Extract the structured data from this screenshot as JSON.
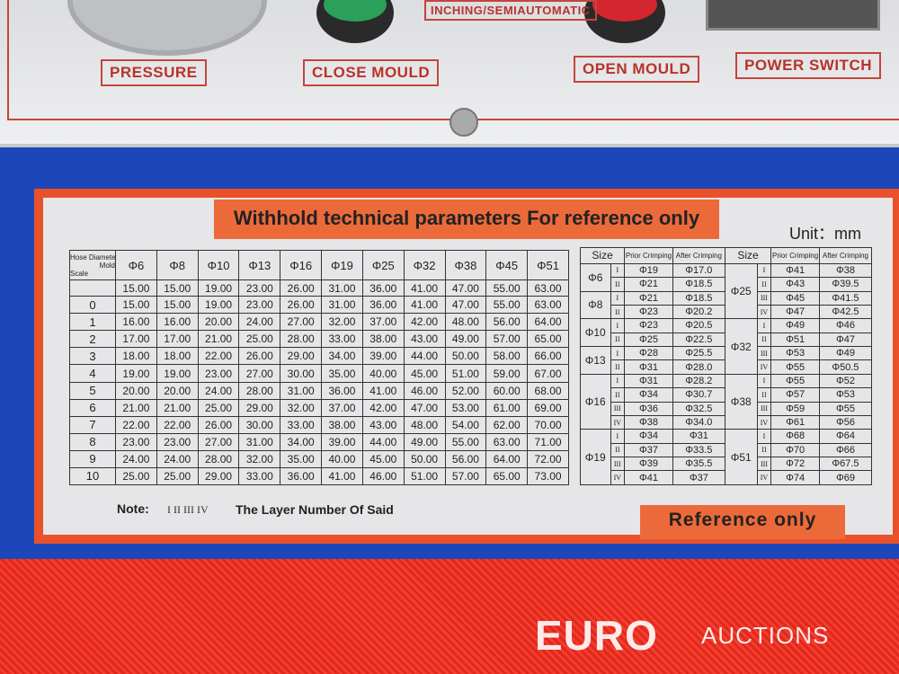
{
  "panel": {
    "pressure": "PRESSURE",
    "close_mould": "CLOSE MOULD",
    "mode": "INCHING/SEMIAUTOMATIC",
    "open_mould": "OPEN MOULD",
    "power_switch": "POWER SWITCH"
  },
  "label": {
    "title": "Withhold technical parameters For reference only",
    "unit": "Unit：mm",
    "note": "Note:",
    "layers": "I II III IV",
    "note_text": "The Layer Number Of Said",
    "reference": "Reference only"
  },
  "left_table": {
    "corner": {
      "hose_diameter": "Hose Diameter",
      "mold": "Mold",
      "scale": "Scale"
    },
    "columns": [
      "Φ6",
      "Φ8",
      "Φ10",
      "Φ13",
      "Φ16",
      "Φ19",
      "Φ25",
      "Φ32",
      "Φ38",
      "Φ45",
      "Φ51"
    ],
    "rows": [
      {
        "values": [
          "15.00",
          "15.00",
          "19.00",
          "23.00",
          "26.00",
          "31.00",
          "36.00",
          "41.00",
          "47.00",
          "55.00",
          "63.00"
        ]
      },
      {
        "scale": "0",
        "values": [
          "15.00",
          "15.00",
          "19.00",
          "23.00",
          "26.00",
          "31.00",
          "36.00",
          "41.00",
          "47.00",
          "55.00",
          "63.00"
        ]
      },
      {
        "scale": "1",
        "values": [
          "16.00",
          "16.00",
          "20.00",
          "24.00",
          "27.00",
          "32.00",
          "37.00",
          "42.00",
          "48.00",
          "56.00",
          "64.00"
        ]
      },
      {
        "scale": "2",
        "values": [
          "17.00",
          "17.00",
          "21.00",
          "25.00",
          "28.00",
          "33.00",
          "38.00",
          "43.00",
          "49.00",
          "57.00",
          "65.00"
        ]
      },
      {
        "scale": "3",
        "values": [
          "18.00",
          "18.00",
          "22.00",
          "26.00",
          "29.00",
          "34.00",
          "39.00",
          "44.00",
          "50.00",
          "58.00",
          "66.00"
        ]
      },
      {
        "scale": "4",
        "values": [
          "19.00",
          "19.00",
          "23.00",
          "27.00",
          "30.00",
          "35.00",
          "40.00",
          "45.00",
          "51.00",
          "59.00",
          "67.00"
        ]
      },
      {
        "scale": "5",
        "values": [
          "20.00",
          "20.00",
          "24.00",
          "28.00",
          "31.00",
          "36.00",
          "41.00",
          "46.00",
          "52.00",
          "60.00",
          "68.00"
        ]
      },
      {
        "scale": "6",
        "values": [
          "21.00",
          "21.00",
          "25.00",
          "29.00",
          "32.00",
          "37.00",
          "42.00",
          "47.00",
          "53.00",
          "61.00",
          "69.00"
        ]
      },
      {
        "scale": "7",
        "values": [
          "22.00",
          "22.00",
          "26.00",
          "30.00",
          "33.00",
          "38.00",
          "43.00",
          "48.00",
          "54.00",
          "62.00",
          "70.00"
        ]
      },
      {
        "scale": "8",
        "values": [
          "23.00",
          "23.00",
          "27.00",
          "31.00",
          "34.00",
          "39.00",
          "44.00",
          "49.00",
          "55.00",
          "63.00",
          "71.00"
        ]
      },
      {
        "scale": "9",
        "values": [
          "24.00",
          "24.00",
          "28.00",
          "32.00",
          "35.00",
          "40.00",
          "45.00",
          "50.00",
          "56.00",
          "64.00",
          "72.00"
        ]
      },
      {
        "scale": "10",
        "values": [
          "25.00",
          "25.00",
          "29.00",
          "33.00",
          "36.00",
          "41.00",
          "46.00",
          "51.00",
          "57.00",
          "65.00",
          "73.00"
        ]
      }
    ]
  },
  "right_table": {
    "headers": [
      "Size",
      "Prior Crimping",
      "After Crimping",
      "Size",
      "Prior Crimping",
      "After Crimping"
    ],
    "left_groups": [
      {
        "size": "Φ6",
        "rows": [
          [
            "I",
            "Φ19",
            "Φ17.0"
          ],
          [
            "II",
            "Φ21",
            "Φ18.5"
          ]
        ]
      },
      {
        "size": "Φ8",
        "rows": [
          [
            "I",
            "Φ21",
            "Φ18.5"
          ],
          [
            "II",
            "Φ23",
            "Φ20.2"
          ]
        ]
      },
      {
        "size": "Φ10",
        "rows": [
          [
            "I",
            "Φ23",
            "Φ20.5"
          ],
          [
            "II",
            "Φ25",
            "Φ22.5"
          ]
        ]
      },
      {
        "size": "Φ13",
        "rows": [
          [
            "I",
            "Φ28",
            "Φ25.5"
          ],
          [
            "II",
            "Φ31",
            "Φ28.0"
          ]
        ]
      },
      {
        "size": "Φ16",
        "rows": [
          [
            "I",
            "Φ31",
            "Φ28.2"
          ],
          [
            "II",
            "Φ34",
            "Φ30.7"
          ],
          [
            "III",
            "Φ36",
            "Φ32.5"
          ],
          [
            "IV",
            "Φ38",
            "Φ34.0"
          ]
        ]
      },
      {
        "size": "Φ19",
        "rows": [
          [
            "I",
            "Φ34",
            "Φ31"
          ],
          [
            "II",
            "Φ37",
            "Φ33.5"
          ],
          [
            "III",
            "Φ39",
            "Φ35.5"
          ],
          [
            "IV",
            "Φ41",
            "Φ37"
          ]
        ]
      }
    ],
    "right_groups": [
      {
        "size": "Φ25",
        "rows": [
          [
            "I",
            "Φ41",
            "Φ38"
          ],
          [
            "II",
            "Φ43",
            "Φ39.5"
          ],
          [
            "III",
            "Φ45",
            "Φ41.5"
          ],
          [
            "IV",
            "Φ47",
            "Φ42.5"
          ]
        ]
      },
      {
        "size": "Φ32",
        "rows": [
          [
            "I",
            "Φ49",
            "Φ46"
          ],
          [
            "II",
            "Φ51",
            "Φ47"
          ],
          [
            "III",
            "Φ53",
            "Φ49"
          ],
          [
            "IV",
            "Φ55",
            "Φ50.5"
          ]
        ]
      },
      {
        "size": "Φ38",
        "rows": [
          [
            "I",
            "Φ55",
            "Φ52"
          ],
          [
            "II",
            "Φ57",
            "Φ53"
          ],
          [
            "III",
            "Φ59",
            "Φ55"
          ],
          [
            "IV",
            "Φ61",
            "Φ56"
          ]
        ]
      },
      {
        "size": "Φ51",
        "rows": [
          [
            "I",
            "Φ68",
            "Φ64"
          ],
          [
            "II",
            "Φ70",
            "Φ66"
          ],
          [
            "III",
            "Φ72",
            "Φ67.5"
          ],
          [
            "IV",
            "Φ74",
            "Φ69"
          ]
        ]
      }
    ]
  },
  "watermark": {
    "brand": "EURO",
    "suffix": "AUCTIONS"
  }
}
